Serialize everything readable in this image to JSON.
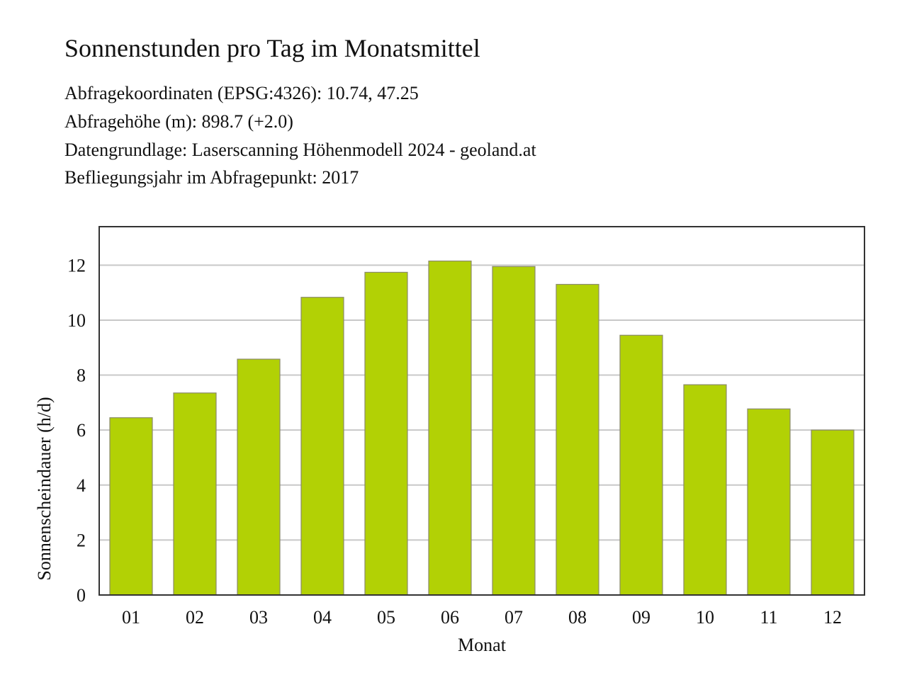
{
  "header": {
    "title": "Sonnenstunden pro Tag im Monatsmittel",
    "info_lines": [
      "Abfragekoordinaten (EPSG:4326): 10.74, 47.25",
      "Abfragehöhe (m): 898.7 (+2.0)",
      "Datengrundlage: Laserscanning Höhenmodell 2024 - geoland.at",
      "Befliegungsjahr im Abfragepunkt: 2017"
    ]
  },
  "chart_data": {
    "type": "bar",
    "categories": [
      "01",
      "02",
      "03",
      "04",
      "05",
      "06",
      "07",
      "08",
      "09",
      "10",
      "11",
      "12"
    ],
    "values": [
      6.45,
      7.35,
      8.58,
      10.83,
      11.74,
      12.15,
      11.95,
      11.3,
      9.45,
      7.65,
      6.77,
      6.0
    ],
    "title": "Sonnenstunden pro Tag im Monatsmittel",
    "xlabel": "Monat",
    "ylabel": "Sonnenscheindauer (h/d)",
    "ylim": [
      0,
      13.4
    ],
    "yticks": [
      0,
      2,
      4,
      6,
      8,
      10,
      12
    ],
    "grid": true,
    "bar_color": "#b2d105",
    "bar_edge_color": "#8a8a6a",
    "grid_color": "#c8c8c8",
    "axis_color": "#333333"
  }
}
